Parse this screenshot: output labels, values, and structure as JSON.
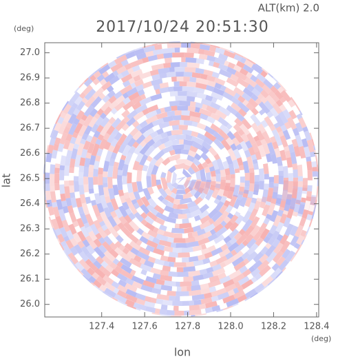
{
  "chart_data": {
    "type": "radar-ppi",
    "title": "2017/10/24 20:51:30",
    "subtitle": "ALT(km) 2.0",
    "x_label": "lon",
    "y_label": "lat",
    "x_unit": "(deg)",
    "y_unit": "(deg)",
    "xlim": [
      127.135,
      128.41
    ],
    "ylim": [
      25.95,
      27.04
    ],
    "xticks": [
      127.4,
      127.6,
      127.8,
      {
        "value": 128.0,
        "label": "128.0"
      },
      128.2,
      128.4
    ],
    "yticks": [
      {
        "value": 26.0,
        "label": "26.0"
      },
      26.1,
      26.2,
      26.3,
      26.4,
      26.5,
      26.6,
      26.7,
      26.8,
      26.9,
      {
        "value": 27.0,
        "label": "27.0"
      }
    ]
  }
}
